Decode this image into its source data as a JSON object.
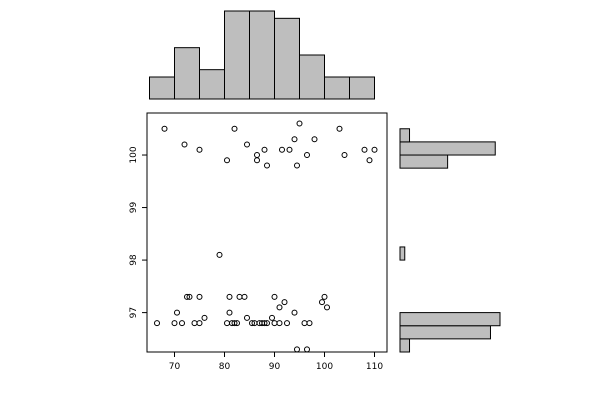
{
  "chart_data": {
    "type": "scatter",
    "title": "",
    "xlabel": "",
    "ylabel": "",
    "xlim": [
      64.5,
      112.5
    ],
    "ylim": [
      96.25,
      100.8
    ],
    "x_ticks": [
      70,
      80,
      90,
      100,
      110
    ],
    "y_ticks": [
      97,
      98,
      99,
      100
    ],
    "x_tick_labels": [
      "70",
      "80",
      "90",
      "100",
      "110"
    ],
    "y_tick_labels": [
      "97",
      "98",
      "99",
      "100"
    ],
    "grid": false,
    "legend": "none",
    "points": [
      [
        66.5,
        96.8
      ],
      [
        68,
        100.5
      ],
      [
        70,
        96.8
      ],
      [
        70.5,
        97
      ],
      [
        71.5,
        96.8
      ],
      [
        72,
        100.2
      ],
      [
        72.5,
        97.3
      ],
      [
        73,
        97.3
      ],
      [
        74,
        96.8
      ],
      [
        75,
        96.8
      ],
      [
        75,
        97.3
      ],
      [
        75,
        100.1
      ],
      [
        76,
        96.9
      ],
      [
        79,
        98.1
      ],
      [
        80.5,
        96.8
      ],
      [
        80.5,
        99.9
      ],
      [
        81,
        97
      ],
      [
        81,
        97.3
      ],
      [
        81.5,
        96.8
      ],
      [
        82,
        96.8
      ],
      [
        82,
        100.5
      ],
      [
        82.5,
        96.8
      ],
      [
        83,
        97.3
      ],
      [
        84,
        97.3
      ],
      [
        84.5,
        96.9
      ],
      [
        84.5,
        100.2
      ],
      [
        85.5,
        96.8
      ],
      [
        86,
        96.8
      ],
      [
        86.5,
        99.9
      ],
      [
        86.5,
        100
      ],
      [
        87,
        96.8
      ],
      [
        87.5,
        96.8
      ],
      [
        88,
        96.8
      ],
      [
        88,
        100.1
      ],
      [
        88.5,
        96.8
      ],
      [
        88.5,
        99.8
      ],
      [
        89.5,
        96.9
      ],
      [
        90,
        96.8
      ],
      [
        90,
        97.3
      ],
      [
        91,
        97.1
      ],
      [
        91,
        96.8
      ],
      [
        91.5,
        100.1
      ],
      [
        92,
        97.2
      ],
      [
        92.5,
        96.8
      ],
      [
        93,
        100.1
      ],
      [
        94,
        97
      ],
      [
        94,
        100.3
      ],
      [
        94.5,
        99.8
      ],
      [
        94.5,
        96.3
      ],
      [
        95,
        100.6
      ],
      [
        96,
        96.8
      ],
      [
        96.5,
        96.3
      ],
      [
        96.5,
        100
      ],
      [
        97,
        96.8
      ],
      [
        98,
        100.3
      ],
      [
        99.5,
        97.2
      ],
      [
        100,
        97.3
      ],
      [
        100.5,
        97.1
      ],
      [
        103,
        100.5
      ],
      [
        104,
        100
      ],
      [
        108,
        100.1
      ],
      [
        109,
        99.9
      ],
      [
        110,
        100.1
      ]
    ],
    "x_histogram": {
      "breaks": [
        65,
        70,
        75,
        80,
        85,
        90,
        95,
        100,
        105,
        110
      ],
      "counts": [
        3,
        7,
        4,
        12,
        12,
        11,
        6,
        3,
        3
      ]
    },
    "y_histogram": {
      "breaks": [
        96.25,
        96.5,
        96.75,
        97,
        97.25,
        97.5,
        97.75,
        98,
        98.25,
        98.5,
        98.75,
        99,
        99.25,
        99.5,
        99.75,
        100,
        100.25,
        100.5
      ],
      "counts": [
        2,
        19,
        21,
        0,
        0,
        0,
        0,
        1,
        0,
        0,
        0,
        0,
        0,
        0,
        10,
        20,
        2
      ]
    }
  }
}
